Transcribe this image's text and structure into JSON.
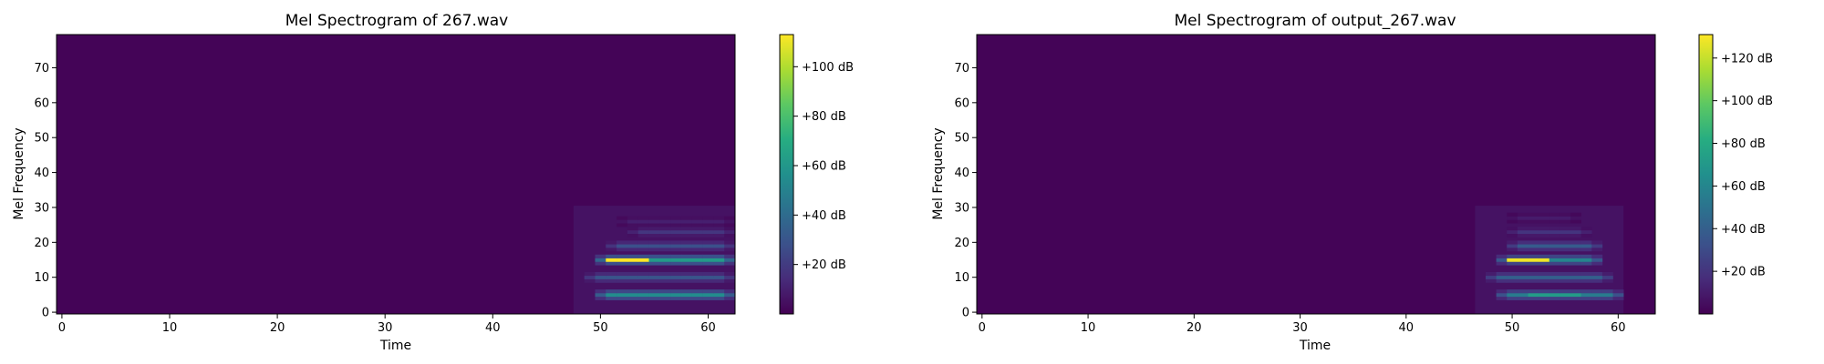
{
  "chart_data": [
    {
      "type": "heatmap",
      "title": "Mel Spectrogram of 267.wav",
      "xlabel": "Time",
      "ylabel": "Mel Frequency",
      "xlim": [
        -0.5,
        62.5
      ],
      "ylim": [
        -0.5,
        79.5
      ],
      "xticks": [
        0,
        10,
        20,
        30,
        40,
        50,
        60
      ],
      "yticks": [
        0,
        10,
        20,
        30,
        40,
        50,
        60,
        70
      ],
      "colormap": "viridis",
      "colorbar": {
        "vmin": 0,
        "vmax": 113,
        "ticks": [
          20,
          40,
          60,
          80,
          100
        ],
        "tick_labels": [
          "+20 dB",
          "+40 dB",
          "+60 dB",
          "+80 dB",
          "+100 dB"
        ]
      },
      "energy_region": {
        "time_range": [
          48,
          62
        ],
        "mel_range": [
          0,
          30
        ],
        "bands": [
          {
            "mel": 5,
            "start": 50,
            "end": 62,
            "level_db": 55
          },
          {
            "mel": 10,
            "start": 49,
            "end": 62,
            "level_db": 30
          },
          {
            "mel": 15,
            "start": 50,
            "end": 62,
            "level_db": 62,
            "peak": {
              "start": 51,
              "end": 54,
              "level_db": 113
            }
          },
          {
            "mel": 19,
            "start": 51,
            "end": 62,
            "level_db": 28
          },
          {
            "mel": 23,
            "start": 53,
            "end": 62,
            "level_db": 18
          },
          {
            "mel": 26,
            "start": 52,
            "end": 62,
            "level_db": 10
          }
        ]
      }
    },
    {
      "type": "heatmap",
      "title": "Mel Spectrogram of output_267.wav",
      "xlabel": "Time",
      "ylabel": "Mel Frequency",
      "xlim": [
        -0.5,
        63.5
      ],
      "ylim": [
        -0.5,
        79.5
      ],
      "xticks": [
        0,
        10,
        20,
        30,
        40,
        50,
        60
      ],
      "yticks": [
        0,
        10,
        20,
        30,
        40,
        50,
        60,
        70
      ],
      "colormap": "viridis",
      "colorbar": {
        "vmin": 0,
        "vmax": 131,
        "ticks": [
          20,
          40,
          60,
          80,
          100,
          120
        ],
        "tick_labels": [
          "+20 dB",
          "+40 dB",
          "+60 dB",
          "+80 dB",
          "+100 dB",
          "+120 dB"
        ]
      },
      "energy_region": {
        "time_range": [
          47,
          60
        ],
        "mel_range": [
          0,
          30
        ],
        "bands": [
          {
            "mel": 5,
            "start": 49,
            "end": 60,
            "level_db": 55,
            "peak": {
              "start": 52,
              "end": 56,
              "level_db": 72
            }
          },
          {
            "mel": 10,
            "start": 48,
            "end": 59,
            "level_db": 40
          },
          {
            "mel": 15,
            "start": 49,
            "end": 58,
            "level_db": 60,
            "peak": {
              "start": 50,
              "end": 53,
              "level_db": 128
            }
          },
          {
            "mel": 19,
            "start": 50,
            "end": 58,
            "level_db": 38
          },
          {
            "mel": 23,
            "start": 50,
            "end": 57,
            "level_db": 20
          },
          {
            "mel": 27,
            "start": 50,
            "end": 56,
            "level_db": 10
          }
        ]
      }
    }
  ]
}
